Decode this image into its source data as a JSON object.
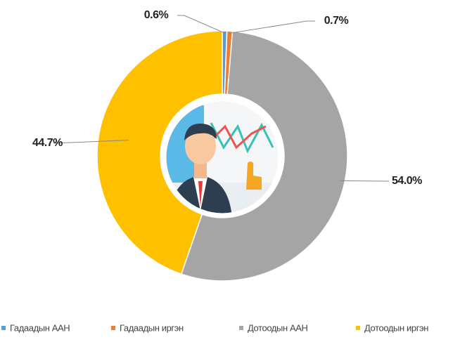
{
  "chart_data": {
    "type": "donut",
    "categories": [
      "Гадаадын ААН",
      "Гадаадын иргэн",
      "Дотоодын ААН",
      "Дотоодын иргэн"
    ],
    "values": [
      0.6,
      0.7,
      54.0,
      44.7
    ],
    "value_labels": [
      "0.6%",
      "0.7%",
      "54.0%",
      "44.7%"
    ],
    "colors": [
      "#5b9bd5",
      "#ed7d31",
      "#a5a5a5",
      "#ffc000"
    ],
    "legend": "bottom"
  }
}
